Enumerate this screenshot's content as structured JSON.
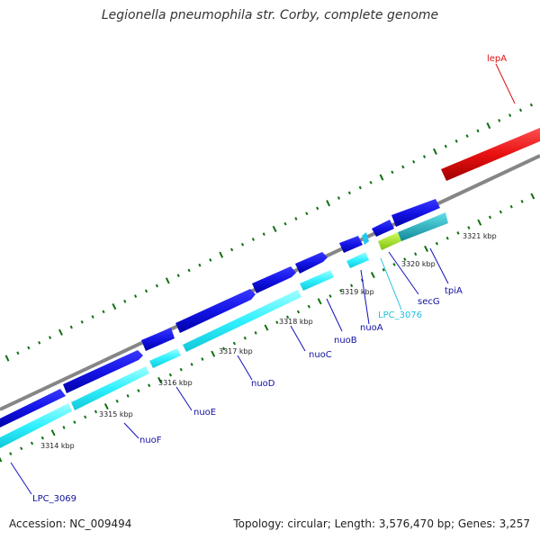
{
  "title": "Legionella pneumophila str. Corby, complete genome",
  "footer": {
    "accession": "Accession: NC_009494",
    "summary": "Topology: circular; Length: 3,576,470 bp; Genes: 3,257"
  },
  "colors": {
    "backbone": "#808080",
    "forward_cds": "#1010e0",
    "reverse_cds": "#00e0f0",
    "secG_feature": "#a0e020",
    "lepA_feature": "#e01010",
    "gene_label": "#1010a0",
    "lepA_label": "#e01010",
    "lpc3076_label": "#20c0e0",
    "tick": "#107010"
  },
  "tick_labels": [
    "3314 kbp",
    "3315 kbp",
    "3316 kbp",
    "3317 kbp",
    "3318 kbp",
    "3319 kbp",
    "3320 kbp",
    "3321 kbp"
  ],
  "gene_labels": [
    "LPC_3069",
    "nuoF",
    "nuoE",
    "nuoD",
    "nuoC",
    "nuoB",
    "nuoA",
    "LPC_3076",
    "secG",
    "tpiA",
    "lepA"
  ]
}
